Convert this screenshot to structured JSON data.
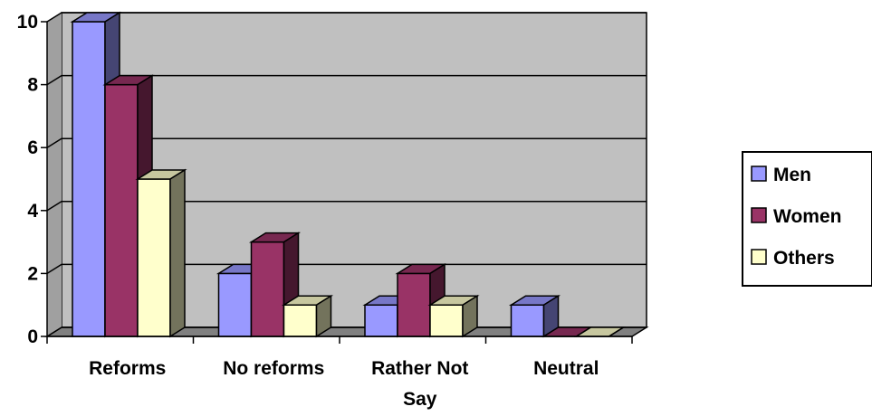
{
  "chart_data": {
    "type": "bar",
    "title": "",
    "xlabel": "",
    "ylabel": "",
    "categories": [
      "Reforms",
      "No reforms",
      "Rather Not Say",
      "Neutral"
    ],
    "series": [
      {
        "name": "Men",
        "values": [
          10,
          2,
          1,
          1
        ],
        "color": "#9999ff"
      },
      {
        "name": "Women",
        "values": [
          8,
          3,
          2,
          0
        ],
        "color": "#993366"
      },
      {
        "name": "Others",
        "values": [
          5,
          1,
          1,
          0
        ],
        "color": "#ffffcc"
      }
    ],
    "ylim": [
      0,
      10
    ],
    "yticks": [
      0,
      2,
      4,
      6,
      8,
      10
    ],
    "grid": true,
    "legend": "right",
    "plot_background": "#c0c0c0"
  }
}
